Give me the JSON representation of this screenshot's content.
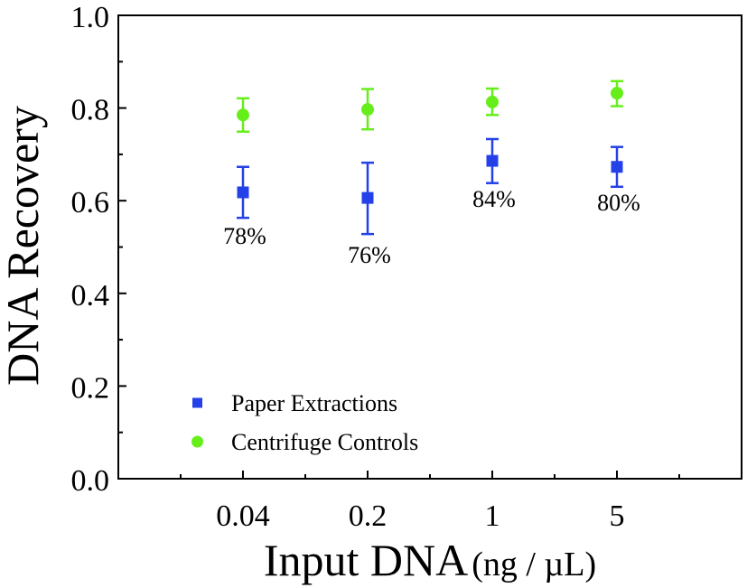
{
  "chart_data": {
    "type": "scatter",
    "title": "",
    "xlabel": "Input DNA",
    "xlabel_unit": "(ng / µL)",
    "ylabel": "DNA Recovery",
    "categories": [
      "0.04",
      "0.2",
      "1",
      "5"
    ],
    "ylim": [
      0.0,
      1.0
    ],
    "yticks": [
      "0.0",
      "0.2",
      "0.4",
      "0.6",
      "0.8",
      "1.0"
    ],
    "grid": false,
    "legend_position": "bottom-left",
    "series": [
      {
        "name": "Paper Extractions",
        "marker": "square",
        "color": "#2440e8",
        "values": [
          0.618,
          0.606,
          0.686,
          0.673
        ],
        "err_low": [
          0.563,
          0.528,
          0.638,
          0.63
        ],
        "err_high": [
          0.673,
          0.682,
          0.733,
          0.716
        ]
      },
      {
        "name": "Centrifuge Controls",
        "marker": "circle",
        "color": "#66ee1a",
        "values": [
          0.785,
          0.797,
          0.813,
          0.832
        ],
        "err_low": [
          0.749,
          0.754,
          0.785,
          0.804
        ],
        "err_high": [
          0.821,
          0.841,
          0.842,
          0.858
        ]
      }
    ],
    "annotations": [
      "78%",
      "76%",
      "84%",
      "80%"
    ]
  }
}
